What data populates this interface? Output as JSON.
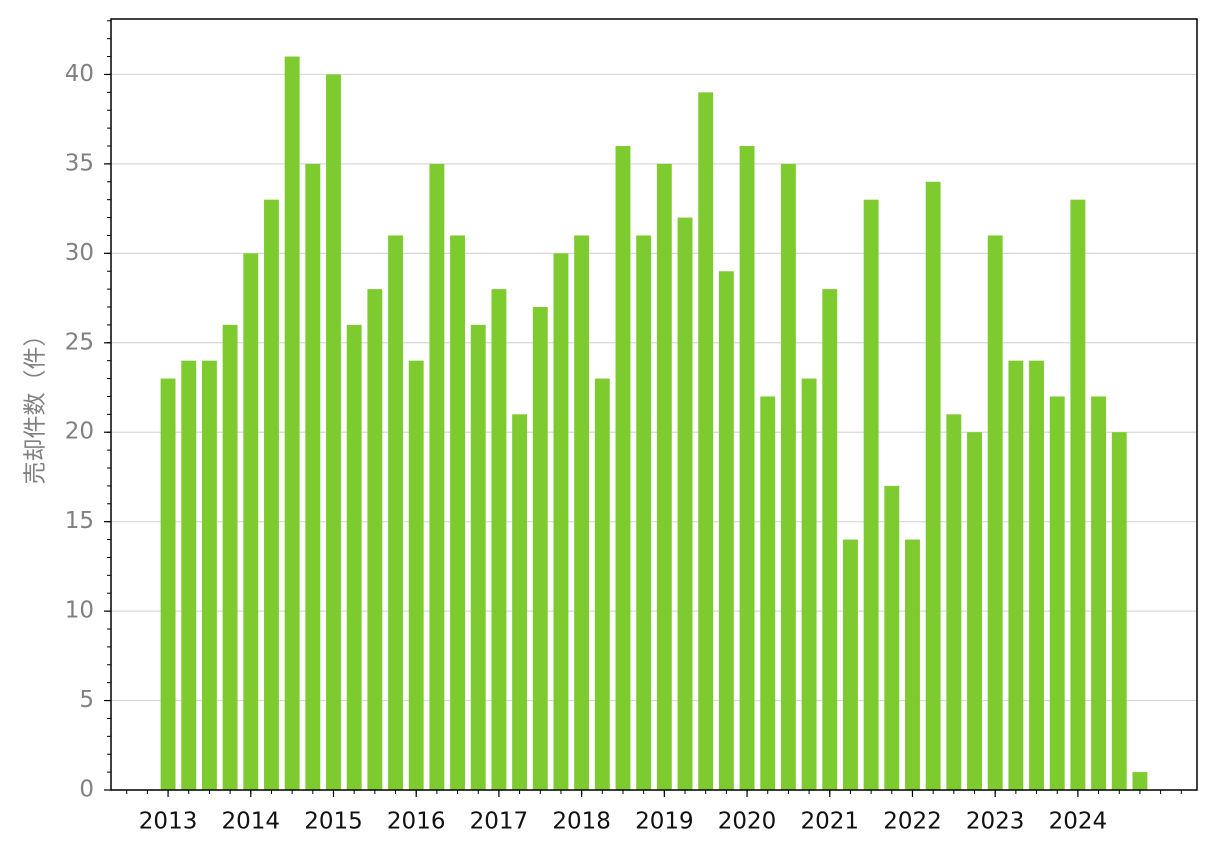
{
  "chart_data": {
    "type": "bar",
    "y_label": "売却件数（件）",
    "categories": [
      "2013",
      null,
      null,
      null,
      "2014",
      null,
      null,
      null,
      "2015",
      null,
      null,
      null,
      "2016",
      null,
      null,
      null,
      "2017",
      null,
      null,
      null,
      "2018",
      null,
      null,
      null,
      "2019",
      null,
      null,
      null,
      "2020",
      null,
      null,
      null,
      "2021",
      null,
      null,
      null,
      "2022",
      null,
      null,
      null,
      "2023",
      null,
      null,
      null,
      "2024",
      null,
      null,
      null
    ],
    "values": [
      23,
      24,
      24,
      26,
      30,
      33,
      41,
      35,
      40,
      26,
      28,
      31,
      24,
      35,
      31,
      26,
      28,
      21,
      27,
      30,
      31,
      23,
      36,
      31,
      35,
      32,
      39,
      29,
      36,
      22,
      35,
      23,
      28,
      14,
      33,
      17,
      14,
      34,
      21,
      20,
      31,
      24,
      24,
      22,
      33,
      22,
      20,
      1
    ],
    "color": "#7ecb30",
    "ylim": [
      0,
      43.1
    ],
    "yticks": [
      0,
      5,
      10,
      15,
      20,
      25,
      30,
      35,
      40
    ],
    "grid": true
  }
}
